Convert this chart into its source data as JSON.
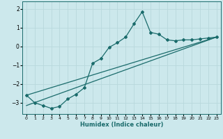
{
  "title": "",
  "xlabel": "Humidex (Indice chaleur)",
  "ylabel": "",
  "background_color": "#cce8ec",
  "line_color": "#1a6b6b",
  "grid_color": "#b8d8dc",
  "xlim": [
    -0.5,
    23.5
  ],
  "ylim": [
    -3.6,
    2.4
  ],
  "yticks": [
    -3,
    -2,
    -1,
    0,
    1,
    2
  ],
  "xticks": [
    0,
    1,
    2,
    3,
    4,
    5,
    6,
    7,
    8,
    9,
    10,
    11,
    12,
    13,
    14,
    15,
    16,
    17,
    18,
    19,
    20,
    21,
    22,
    23
  ],
  "series1_x": [
    0,
    1,
    2,
    3,
    4,
    5,
    6,
    7,
    8,
    9,
    10,
    11,
    12,
    13,
    14,
    15,
    16,
    17,
    18,
    19,
    20,
    21,
    22,
    23
  ],
  "series1_y": [
    -2.6,
    -3.0,
    -3.15,
    -3.3,
    -3.2,
    -2.8,
    -2.55,
    -2.2,
    -0.9,
    -0.65,
    -0.05,
    0.2,
    0.5,
    1.2,
    1.85,
    0.75,
    0.65,
    0.35,
    0.3,
    0.35,
    0.35,
    0.4,
    0.45,
    0.5
  ],
  "series2_x": [
    0,
    23
  ],
  "series2_y": [
    -2.6,
    0.5
  ],
  "series3_x": [
    0,
    23
  ],
  "series3_y": [
    -3.15,
    0.5
  ],
  "marker": "D",
  "marker_size": 2.0,
  "line_width": 0.9
}
